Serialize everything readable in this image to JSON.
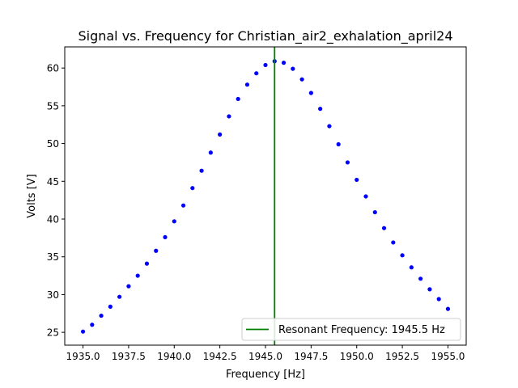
{
  "chart_data": {
    "type": "scatter",
    "title": "Signal vs. Frequency for Christian_air2_exhalation_april24",
    "xlabel": "Frequency [Hz]",
    "ylabel": "Volts [V]",
    "xlim": [
      1934.0,
      1956.0
    ],
    "ylim": [
      23.3,
      62.8
    ],
    "x_ticks": [
      1935.0,
      1937.5,
      1940.0,
      1942.5,
      1945.0,
      1947.5,
      1950.0,
      1952.5,
      1955.0
    ],
    "x_tick_labels": [
      "1935.0",
      "1937.5",
      "1940.0",
      "1942.5",
      "1945.0",
      "1947.5",
      "1950.0",
      "1952.5",
      "1955.0"
    ],
    "y_ticks": [
      25,
      30,
      35,
      40,
      45,
      50,
      55,
      60
    ],
    "y_tick_labels": [
      "25",
      "30",
      "35",
      "40",
      "45",
      "50",
      "55",
      "60"
    ],
    "grid": false,
    "legend_position": "lower-right",
    "series": [
      {
        "color": "#0000ff",
        "marker": "dot",
        "x": [
          1935.0,
          1935.5,
          1936.0,
          1936.5,
          1937.0,
          1937.5,
          1938.0,
          1938.5,
          1939.0,
          1939.5,
          1940.0,
          1940.5,
          1941.0,
          1941.5,
          1942.0,
          1942.5,
          1943.0,
          1943.5,
          1944.0,
          1944.5,
          1945.0,
          1945.5,
          1946.0,
          1946.5,
          1947.0,
          1947.5,
          1948.0,
          1948.5,
          1949.0,
          1949.5,
          1950.0,
          1950.5,
          1951.0,
          1951.5,
          1952.0,
          1952.5,
          1953.0,
          1953.5,
          1954.0,
          1954.5,
          1955.0
        ],
        "y": [
          25.1,
          26.0,
          27.2,
          28.4,
          29.7,
          31.1,
          32.5,
          34.1,
          35.8,
          37.6,
          39.7,
          41.8,
          44.1,
          46.4,
          48.8,
          51.2,
          53.6,
          55.9,
          57.8,
          59.3,
          60.4,
          60.9,
          60.7,
          59.9,
          58.5,
          56.7,
          54.6,
          52.3,
          49.9,
          47.5,
          45.2,
          43.0,
          40.9,
          38.8,
          36.9,
          35.2,
          33.6,
          32.1,
          30.7,
          29.4,
          28.1
        ]
      }
    ],
    "reference_lines": [
      {
        "orientation": "vertical",
        "x": 1945.5,
        "color": "#008000",
        "label": "Resonant Frequency: 1945.5 Hz"
      }
    ]
  }
}
